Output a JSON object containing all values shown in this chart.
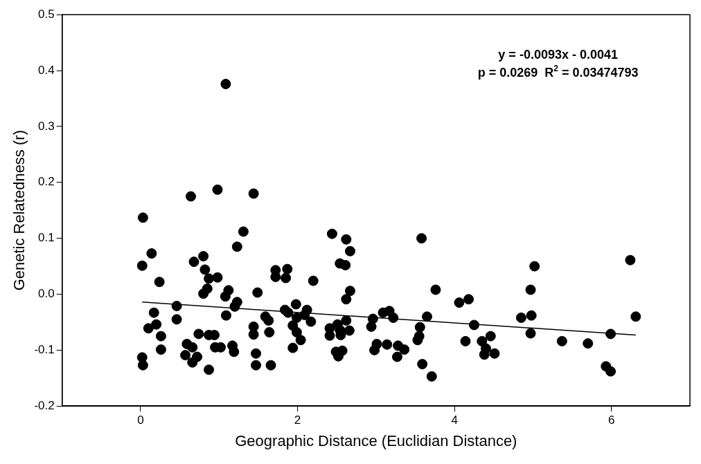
{
  "chart_data": {
    "type": "scatter",
    "xlabel": "Geographic Distance (Euclidian Distance)",
    "ylabel": "Genetic Relatedness (r)",
    "annotations": [
      "y = -0.0093x - 0.0041",
      "p = 0.0269  R$^{2}$ = 0.03474793"
    ],
    "xlim": [
      -1,
      7
    ],
    "xticks": [
      0,
      2,
      4,
      6
    ],
    "ylim": [
      -0.2,
      0.5
    ],
    "yticks": [
      -0.2,
      -0.1,
      {
        "value": 0,
        "label": "0.0"
      },
      0.1,
      0.2,
      0.3,
      0.4,
      0.5
    ],
    "grid": false,
    "legend": false,
    "series": [
      {
        "type": "scatter",
        "color": "#000000",
        "marker": "circle",
        "x": [
          1.085,
          0.03,
          0.64,
          0.98,
          1.44,
          1.31,
          1.23,
          0.14,
          0.02,
          0.68,
          0.8,
          0.24,
          0.82,
          0.87,
          0.98,
          0.85,
          0.8,
          1.12,
          1.08,
          1.49,
          1.23,
          1.2,
          0.46,
          0.17,
          0.46,
          1.09,
          0.2,
          0.1,
          0.26,
          0.26,
          0.74,
          0.87,
          0.94,
          1.44,
          1.44,
          1.59,
          1.64,
          0.59,
          0.66,
          0.57,
          0.72,
          0.66,
          0.95,
          1.02,
          1.17,
          1.19,
          1.47,
          1.47,
          0.02,
          0.03,
          0.87,
          1.66,
          1.63,
          1.72,
          1.72,
          1.87,
          1.85,
          2.2,
          1.84,
          1.88,
          1.98,
          1.94,
          1.99,
          2.04,
          1.94,
          2.12,
          2.09,
          2.17,
          1.99,
          2.44,
          2.62,
          2.67,
          2.54,
          2.61,
          2.67,
          2.62,
          2.41,
          2.41,
          2.51,
          2.55,
          2.62,
          2.66,
          2.54,
          2.49,
          2.52,
          2.57,
          2.96,
          2.94,
          2.98,
          3.01,
          3.14,
          3.09,
          3.17,
          3.22,
          3.28,
          3.36,
          3.27,
          3.58,
          3.76,
          3.65,
          3.56,
          3.55,
          3.53,
          3.59,
          3.71,
          4.06,
          4.18,
          4.14,
          4.25,
          4.35,
          4.46,
          4.4,
          4.38,
          4.51,
          4.85,
          4.98,
          4.97,
          5.02,
          4.97,
          5.37,
          5.7,
          5.99,
          5.93,
          5.99,
          6.24,
          6.31
        ],
        "values": [
          0.376,
          0.137,
          0.175,
          0.187,
          0.18,
          0.112,
          0.085,
          0.073,
          0.051,
          0.058,
          0.068,
          0.022,
          0.044,
          0.028,
          0.03,
          0.01,
          0.001,
          0.007,
          -0.004,
          0.003,
          -0.014,
          -0.022,
          -0.021,
          -0.033,
          -0.045,
          -0.038,
          -0.054,
          -0.061,
          -0.075,
          -0.099,
          -0.071,
          -0.073,
          -0.073,
          -0.058,
          -0.072,
          -0.04,
          -0.068,
          -0.089,
          -0.095,
          -0.109,
          -0.112,
          -0.122,
          -0.095,
          -0.095,
          -0.092,
          -0.103,
          -0.106,
          -0.127,
          -0.113,
          -0.127,
          -0.135,
          -0.127,
          -0.047,
          0.043,
          0.031,
          0.045,
          0.029,
          0.024,
          -0.028,
          -0.033,
          -0.018,
          -0.056,
          -0.068,
          -0.082,
          -0.096,
          -0.028,
          -0.037,
          -0.049,
          -0.042,
          0.108,
          0.098,
          0.077,
          0.055,
          0.052,
          0.006,
          -0.009,
          -0.061,
          -0.074,
          -0.054,
          -0.073,
          -0.047,
          -0.065,
          -0.064,
          -0.103,
          -0.111,
          -0.101,
          -0.044,
          -0.058,
          -0.1,
          -0.089,
          -0.09,
          -0.033,
          -0.03,
          -0.042,
          -0.092,
          -0.099,
          -0.112,
          0.1,
          0.008,
          -0.04,
          -0.059,
          -0.075,
          -0.082,
          -0.125,
          -0.147,
          -0.015,
          -0.009,
          -0.084,
          -0.055,
          -0.084,
          -0.075,
          -0.097,
          -0.108,
          -0.106,
          -0.042,
          -0.038,
          0.008,
          0.05,
          -0.07,
          -0.084,
          -0.088,
          -0.071,
          -0.129,
          -0.138,
          0.061,
          -0.04
        ]
      },
      {
        "type": "line",
        "color": "#000000",
        "marker": "none",
        "line_style": "solid",
        "x": [
          0.02,
          6.31
        ],
        "values": [
          -0.014,
          -0.073
        ]
      }
    ]
  }
}
